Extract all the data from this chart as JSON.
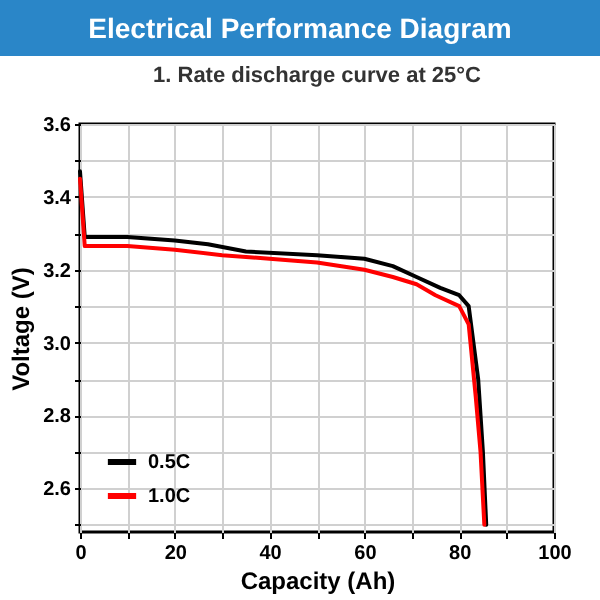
{
  "chart_data": {
    "type": "line",
    "title": "Electrical Performance Diagram",
    "subtitle": "1.  Rate discharge curve at 25°C",
    "xlabel": "Capacity (Ah)",
    "ylabel": "Voltage (V)",
    "xlim": [
      0,
      100
    ],
    "xticks": [
      0,
      {
        "value": 10,
        "label": null
      },
      20,
      {
        "value": 30,
        "label": null
      },
      40,
      {
        "value": 50,
        "label": null
      },
      60,
      {
        "value": 70,
        "label": null
      },
      80,
      {
        "value": 90,
        "label": null
      },
      100
    ],
    "ylim": [
      2.48,
      3.6
    ],
    "yticks": [
      {
        "value": 2.5,
        "label": null
      },
      2.6,
      {
        "value": 2.7,
        "label": null
      },
      2.8,
      {
        "value": 2.9,
        "label": null
      },
      {
        "value": 3,
        "label": "3.0"
      },
      {
        "value": 3.1,
        "label": null
      },
      3.2,
      {
        "value": 3.3,
        "label": null
      },
      3.4,
      {
        "value": 3.5,
        "label": null
      },
      3.6
    ],
    "grid": true,
    "legend": "bottom left",
    "marker": "none",
    "line_style": "solid",
    "series": [
      {
        "name": "0.5C",
        "color": "#000000",
        "x": [
          0,
          1,
          10,
          20,
          27,
          35,
          50,
          60,
          66,
          71,
          76,
          80,
          82,
          84,
          85,
          85.7
        ],
        "values": [
          3.47,
          3.29,
          3.29,
          3.28,
          3.27,
          3.25,
          3.24,
          3.23,
          3.21,
          3.18,
          3.15,
          3.13,
          3.1,
          2.9,
          2.7,
          2.5
        ]
      },
      {
        "name": "1.0C",
        "color": "#ff0000",
        "x": [
          0,
          1,
          10,
          20,
          30,
          40,
          50,
          60,
          66,
          71,
          75,
          80,
          82,
          83.5,
          84.5,
          85.3
        ],
        "values": [
          3.45,
          3.265,
          3.265,
          3.255,
          3.24,
          3.23,
          3.22,
          3.2,
          3.18,
          3.16,
          3.13,
          3.1,
          3.05,
          2.85,
          2.7,
          2.5
        ]
      }
    ]
  }
}
